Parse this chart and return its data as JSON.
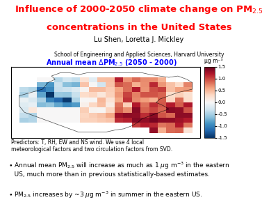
{
  "title_color": "#FF0000",
  "author": "Lu Shen, Loretta J. Mickley",
  "affiliation": "School of Engineering and Applied Sciences, Harvard University",
  "map_label_color": "#0000FF",
  "colorbar_label": "μg m⁻³",
  "colorbar_ticks": [
    1.5,
    1.0,
    0.5,
    0.0,
    -0.5,
    -1.0,
    -1.5
  ],
  "caption": "Predictors: T, RH, EW and NS wind. We use 4 local\nmeteorological factors and two circulation factors from SVD.",
  "bg_color": "#FFFFFF",
  "font_size_title": 9.5,
  "font_size_author": 7,
  "font_size_affil": 5.5,
  "font_size_maplabel": 7,
  "font_size_caption": 5.5,
  "font_size_bullets": 6.5
}
